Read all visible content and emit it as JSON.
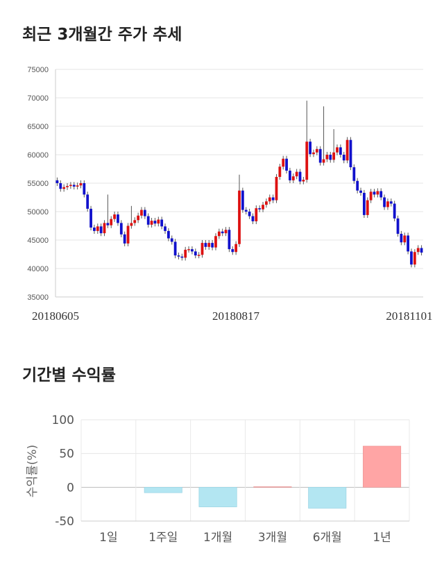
{
  "chart_data": [
    {
      "type": "candlestick",
      "title": "최근 3개월간 주가 추세",
      "ylim": [
        35000,
        75000
      ],
      "y_ticks": [
        "75000",
        "70000",
        "65000",
        "60000",
        "55000",
        "50000",
        "45000",
        "40000",
        "35000"
      ],
      "x_labels": [
        "20180605",
        "20180817",
        "20181101"
      ],
      "grid": true,
      "colors": {
        "up": "#dd1111",
        "down": "#1111cc",
        "wick": "#555555",
        "grid": "#e6e6e6"
      },
      "closes": [
        55000,
        54000,
        54300,
        54500,
        54700,
        54400,
        54600,
        55000,
        53000,
        50500,
        47200,
        46600,
        47400,
        46200,
        48000,
        47600,
        48700,
        49500,
        48000,
        46000,
        44400,
        47500,
        48000,
        48500,
        49300,
        50300,
        49200,
        47700,
        48400,
        47900,
        48600,
        47400,
        46600,
        45300,
        44700,
        42300,
        42100,
        41900,
        43300,
        43400,
        43000,
        42300,
        42400,
        44500,
        43800,
        44500,
        43700,
        45700,
        46500,
        46200,
        46800,
        43400,
        42900,
        44300,
        53700,
        50300,
        50000,
        49200,
        48300,
        50600,
        50400,
        51200,
        51800,
        52500,
        52000,
        56100,
        57900,
        59300,
        57200,
        55500,
        56200,
        57000,
        55300,
        55600,
        62300,
        60100,
        60400,
        61000,
        58600,
        59200,
        60000,
        59100,
        60400,
        61300,
        60000,
        59000,
        62600,
        57800,
        55400,
        53700,
        53300,
        49400,
        52000,
        53500,
        53000,
        53600,
        52500,
        50800,
        51800,
        51400,
        48800,
        46100,
        44600,
        45800,
        43000,
        40700,
        42900,
        43600,
        42800
      ]
    },
    {
      "type": "bar",
      "title": "기간별 수익률",
      "ylabel": "수익률(%)",
      "ylim": [
        -50,
        100
      ],
      "y_ticks": [
        "100",
        "50",
        "0",
        "-50"
      ],
      "categories": [
        "1일",
        "1주일",
        "1개월",
        "3개월",
        "6개월",
        "1년"
      ],
      "values": [
        0,
        -8,
        -29,
        1,
        -31,
        61
      ],
      "colors": {
        "negative": "#b3e6f2",
        "positive": "#ffa5a5",
        "zero": "#f2c4c4"
      }
    }
  ]
}
